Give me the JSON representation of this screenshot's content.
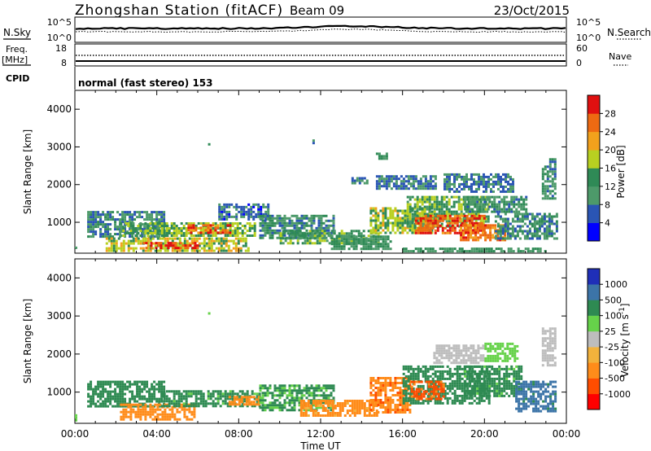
{
  "header": {
    "station": "Zhongshan Station (fitACF)",
    "beam": "Beam 09",
    "date": "23/Oct/2015"
  },
  "summary": {
    "nsky_label": "N.Sky",
    "nsky_ticks": [
      "10^5",
      "10^0"
    ],
    "nsearch_label": "N.Search",
    "nsearch_ticks": [
      "10^5",
      "10^0"
    ],
    "freq_label": "Freq.",
    "freq_unit": "[MHz]",
    "freq_ticks": [
      "18",
      "8"
    ],
    "nave_label": "Nave",
    "nave_ticks": [
      "60",
      "0"
    ],
    "cpid_label": "CPID",
    "cpid_text": "normal (fast stereo) 153"
  },
  "colors": {
    "power": [
      "#0000ff",
      "#2a55b4",
      "#4d9a6a",
      "#2f8a56",
      "#b8d021",
      "#f2a11c",
      "#ee6a12",
      "#e01010"
    ],
    "velocity": [
      "#ff0000",
      "#ff4d00",
      "#ff8c1a",
      "#f2b23c",
      "#bdbdbd",
      "#66d24a",
      "#2e8a52",
      "#3c74a8",
      "#1f2fb8"
    ]
  },
  "chart_data": [
    {
      "type": "heatmap",
      "title": "Power",
      "xlabel": "",
      "ylabel": "Slant Range [km]",
      "colorbar_label": "Power [dB]",
      "colorbar_ticks": [
        "4",
        "8",
        "12",
        "16",
        "20",
        "24",
        "28"
      ],
      "ylim": [
        180,
        4500
      ],
      "xlim": [
        "00:00",
        "24:00"
      ],
      "yticks": [
        "1000",
        "2000",
        "3000",
        "4000"
      ],
      "regions": [
        {
          "t": [
            0.0,
            0.1
          ],
          "r": [
            250,
            420
          ],
          "value": 12
        },
        {
          "t": [
            0.6,
            4.4
          ],
          "r": [
            650,
            1300
          ],
          "value": 9
        },
        {
          "t": [
            2.2,
            4.6
          ],
          "r": [
            650,
            1000
          ],
          "value": 14
        },
        {
          "t": [
            1.5,
            8.5
          ],
          "r": [
            250,
            600
          ],
          "value": 18
        },
        {
          "t": [
            3.2,
            6.0
          ],
          "r": [
            300,
            480
          ],
          "value": 28
        },
        {
          "t": [
            4.2,
            8.8
          ],
          "r": [
            650,
            1000
          ],
          "value": 16
        },
        {
          "t": [
            5.5,
            7.6
          ],
          "r": [
            700,
            950
          ],
          "value": 27
        },
        {
          "t": [
            7.0,
            9.5
          ],
          "r": [
            1100,
            1500
          ],
          "value": 7
        },
        {
          "t": [
            9.0,
            12.6
          ],
          "r": [
            600,
            1200
          ],
          "value": 10
        },
        {
          "t": [
            10.0,
            14.8
          ],
          "r": [
            450,
            800
          ],
          "value": 14
        },
        {
          "t": [
            12.5,
            15.4
          ],
          "r": [
            300,
            650
          ],
          "value": 12
        },
        {
          "t": [
            14.4,
            17.4
          ],
          "r": [
            700,
            1400
          ],
          "value": 17
        },
        {
          "t": [
            16.2,
            20.2
          ],
          "r": [
            900,
            1700
          ],
          "value": 15
        },
        {
          "t": [
            16.6,
            20.0
          ],
          "r": [
            700,
            1200
          ],
          "value": 27
        },
        {
          "t": [
            18.8,
            21.0
          ],
          "r": [
            500,
            950
          ],
          "value": 25
        },
        {
          "t": [
            20.5,
            23.5
          ],
          "r": [
            550,
            1250
          ],
          "value": 10
        },
        {
          "t": [
            19.0,
            22.0
          ],
          "r": [
            1250,
            1700
          ],
          "value": 11
        },
        {
          "t": [
            14.7,
            17.6
          ],
          "r": [
            1900,
            2250
          ],
          "value": 8
        },
        {
          "t": [
            18.0,
            21.4
          ],
          "r": [
            1800,
            2300
          ],
          "value": 8
        },
        {
          "t": [
            22.8,
            23.5
          ],
          "r": [
            1600,
            2700
          ],
          "value": 10
        },
        {
          "t": [
            13.5,
            14.3
          ],
          "r": [
            2050,
            2200
          ],
          "value": 8
        },
        {
          "t": [
            14.7,
            15.2
          ],
          "r": [
            2700,
            2850
          ],
          "value": 12
        },
        {
          "t": [
            6.5,
            6.6
          ],
          "r": [
            3000,
            3100
          ],
          "value": 12
        },
        {
          "t": [
            11.6,
            11.7
          ],
          "r": [
            3100,
            3200
          ],
          "value": 8
        },
        {
          "t": [
            16.0,
            23.0
          ],
          "r": [
            230,
            330
          ],
          "value": 12
        }
      ]
    },
    {
      "type": "heatmap",
      "title": "Velocity",
      "xlabel": "Time UT",
      "ylabel": "Slant Range [km]",
      "colorbar_label": "Velocity [m s",
      "colorbar_label_sup": "-1",
      "colorbar_label_end": "]",
      "colorbar_ticks": [
        "-1000",
        "-500",
        "-100",
        "-25",
        "25",
        "100",
        "500",
        "1000"
      ],
      "ylim": [
        180,
        4500
      ],
      "xlim": [
        "00:00",
        "24:00"
      ],
      "yticks": [
        "1000",
        "2000",
        "3000",
        "4000"
      ],
      "xticks": [
        "00:00",
        "04:00",
        "08:00",
        "12:00",
        "16:00",
        "20:00",
        "00:00"
      ],
      "regions": [
        {
          "t": [
            0.0,
            0.1
          ],
          "r": [
            250,
            420
          ],
          "value": 80
        },
        {
          "t": [
            0.6,
            4.4
          ],
          "r": [
            650,
            1300
          ],
          "value": 350
        },
        {
          "t": [
            2.2,
            5.8
          ],
          "r": [
            300,
            700
          ],
          "value": -250
        },
        {
          "t": [
            4.2,
            9.0
          ],
          "r": [
            650,
            1050
          ],
          "value": 150
        },
        {
          "t": [
            7.5,
            9.0
          ],
          "r": [
            650,
            900
          ],
          "value": -200
        },
        {
          "t": [
            9.0,
            12.6
          ],
          "r": [
            500,
            1200
          ],
          "value": 120
        },
        {
          "t": [
            11.0,
            14.8
          ],
          "r": [
            400,
            800
          ],
          "value": -150
        },
        {
          "t": [
            14.4,
            16.4
          ],
          "r": [
            500,
            1400
          ],
          "value": -400
        },
        {
          "t": [
            16.0,
            20.2
          ],
          "r": [
            700,
            1700
          ],
          "value": 200
        },
        {
          "t": [
            16.4,
            18.0
          ],
          "r": [
            800,
            1300
          ],
          "value": -700
        },
        {
          "t": [
            19.0,
            21.8
          ],
          "r": [
            900,
            1700
          ],
          "value": 150
        },
        {
          "t": [
            21.5,
            23.5
          ],
          "r": [
            500,
            1300
          ],
          "value": 700
        },
        {
          "t": [
            17.5,
            20.0
          ],
          "r": [
            1750,
            2250
          ],
          "value": 5
        },
        {
          "t": [
            20.0,
            21.6
          ],
          "r": [
            1800,
            2300
          ],
          "value": 60
        },
        {
          "t": [
            22.8,
            23.5
          ],
          "r": [
            1700,
            2700
          ],
          "value": 15
        },
        {
          "t": [
            6.5,
            6.6
          ],
          "r": [
            3000,
            3100
          ],
          "value": 50
        }
      ]
    }
  ]
}
